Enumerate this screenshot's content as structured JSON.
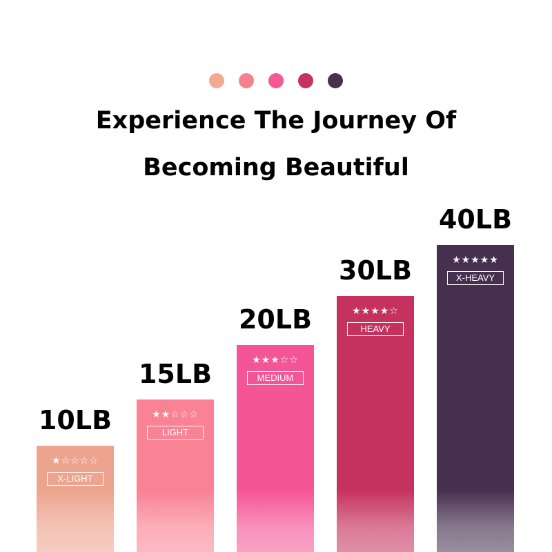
{
  "dots": [
    "#f2a98f",
    "#f5818f",
    "#f45895",
    "#c8335e",
    "#48304f"
  ],
  "title_line1": "Experience The Journey Of",
  "title_line2": "Becoming Beautiful",
  "bars": [
    {
      "weight": "10LB",
      "level": "X-LIGHT",
      "rating": 1,
      "stars": "★☆☆☆☆",
      "color": "#eda48e"
    },
    {
      "weight": "15LB",
      "level": "LIGHT",
      "rating": 2,
      "stars": "★★☆☆☆",
      "color": "#f98294"
    },
    {
      "weight": "20LB",
      "level": "MEDIUM",
      "rating": 3,
      "stars": "★★★☆☆",
      "color": "#f45596"
    },
    {
      "weight": "30LB",
      "level": "HEAVY",
      "rating": 4,
      "stars": "★★★★☆",
      "color": "#c6325f"
    },
    {
      "weight": "40LB",
      "level": "X-HEAVY",
      "rating": 5,
      "stars": "★★★★★",
      "color": "#47304f"
    }
  ]
}
